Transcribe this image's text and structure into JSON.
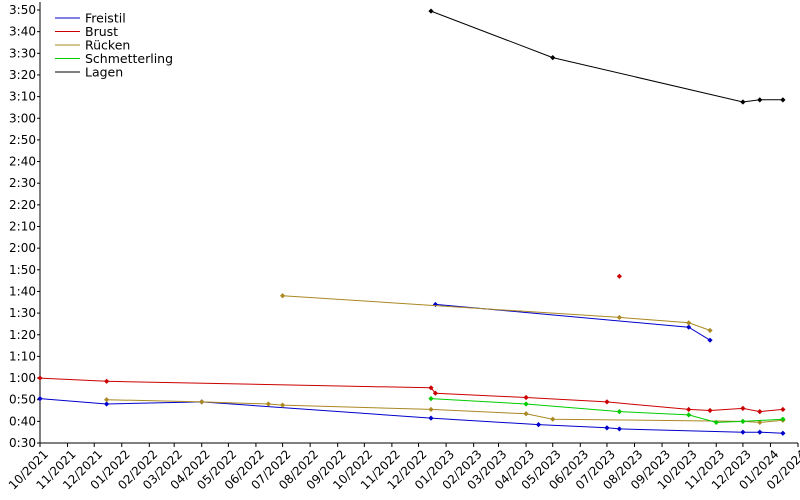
{
  "chart_data": {
    "type": "line",
    "title": "",
    "xlabel": "",
    "ylabel": "",
    "x_tick_labels": [
      "10/2021",
      "11/2021",
      "12/2021",
      "01/2022",
      "02/2022",
      "03/2022",
      "04/2022",
      "05/2022",
      "06/2022",
      "07/2022",
      "08/2022",
      "09/2022",
      "10/2022",
      "11/2022",
      "12/2022",
      "01/2023",
      "02/2023",
      "03/2023",
      "04/2023",
      "05/2023",
      "06/2023",
      "07/2023",
      "08/2023",
      "09/2023",
      "10/2023",
      "11/2023",
      "12/2023",
      "01/2024",
      "02/2024"
    ],
    "y_ticks": [
      "0:30",
      "0:40",
      "0:50",
      "1:00",
      "1:10",
      "1:20",
      "1:30",
      "1:40",
      "1:50",
      "2:00",
      "2:10",
      "2:20",
      "2:30",
      "2:40",
      "2:50",
      "3:00",
      "3:10",
      "3:20",
      "3:30",
      "3:40",
      "3:50"
    ],
    "ylim": [
      "0:30",
      "3:50"
    ],
    "xlim": [
      "2021-10-01",
      "2024-02-01"
    ],
    "grid": false,
    "legend_position": "top-left",
    "series": [
      {
        "name": "Freistil",
        "color": "#0000cc",
        "points": [
          {
            "x": "2021-10-01",
            "y": "0:50.5"
          },
          {
            "x": "2021-12-15",
            "y": "0:48"
          },
          {
            "x": "2022-04-01",
            "y": "0:49"
          },
          {
            "x": "2022-12-15",
            "y": "0:41.5"
          },
          {
            "x": "2023-04-15",
            "y": "0:38.5"
          },
          {
            "x": "2023-07-01",
            "y": "0:37"
          },
          {
            "x": "2023-07-15",
            "y": "0:36.5"
          },
          {
            "x": "2023-12-01",
            "y": "0:35"
          },
          {
            "x": "2023-12-20",
            "y": "0:35"
          },
          {
            "x": "2024-01-15",
            "y": "0:34.5"
          }
        ]
      },
      {
        "name": "Freistil",
        "color": "#0000cc",
        "points": [
          {
            "x": "2022-12-20",
            "y": "1:34"
          },
          {
            "x": "2023-10-01",
            "y": "1:23.5"
          },
          {
            "x": "2023-10-25",
            "y": "1:17.5"
          }
        ]
      },
      {
        "name": "Brust",
        "color": "#cc0000",
        "points": [
          {
            "x": "2021-10-01",
            "y": "1:00"
          },
          {
            "x": "2021-12-15",
            "y": "0:58.5"
          },
          {
            "x": "2022-12-15",
            "y": "0:55.5"
          },
          {
            "x": "2022-12-20",
            "y": "0:53"
          },
          {
            "x": "2023-04-01",
            "y": "0:51"
          },
          {
            "x": "2023-07-01",
            "y": "0:49"
          },
          {
            "x": "2023-10-01",
            "y": "0:45.5"
          },
          {
            "x": "2023-10-25",
            "y": "0:45"
          },
          {
            "x": "2023-12-01",
            "y": "0:46"
          },
          {
            "x": "2023-12-20",
            "y": "0:44.5"
          },
          {
            "x": "2024-01-15",
            "y": "0:45.5"
          }
        ]
      },
      {
        "name": "Brust",
        "color": "#cc0000",
        "points": [
          {
            "x": "2023-07-15",
            "y": "1:47"
          }
        ]
      },
      {
        "name": "Rücken",
        "color": "#aa8822",
        "points": [
          {
            "x": "2021-12-15",
            "y": "0:50"
          },
          {
            "x": "2022-04-01",
            "y": "0:49"
          },
          {
            "x": "2022-06-15",
            "y": "0:48"
          },
          {
            "x": "2022-07-01",
            "y": "0:47.5"
          },
          {
            "x": "2022-12-15",
            "y": "0:45.5"
          },
          {
            "x": "2023-04-01",
            "y": "0:43.5"
          },
          {
            "x": "2023-05-01",
            "y": "0:41"
          },
          {
            "x": "2023-12-01",
            "y": "0:40"
          },
          {
            "x": "2023-12-20",
            "y": "0:39.5"
          },
          {
            "x": "2024-01-15",
            "y": "0:40.5"
          }
        ]
      },
      {
        "name": "Rücken",
        "color": "#aa8822",
        "points": [
          {
            "x": "2022-07-01",
            "y": "1:38"
          },
          {
            "x": "2023-07-15",
            "y": "1:28"
          },
          {
            "x": "2023-10-01",
            "y": "1:25.5"
          },
          {
            "x": "2023-10-25",
            "y": "1:22"
          }
        ]
      },
      {
        "name": "Schmetterling",
        "color": "#00cc00",
        "points": [
          {
            "x": "2022-12-15",
            "y": "0:50.5"
          },
          {
            "x": "2023-04-01",
            "y": "0:48"
          },
          {
            "x": "2023-07-15",
            "y": "0:44.5"
          },
          {
            "x": "2023-10-01",
            "y": "0:43"
          },
          {
            "x": "2023-11-01",
            "y": "0:39.5"
          },
          {
            "x": "2023-12-01",
            "y": "0:40"
          },
          {
            "x": "2024-01-15",
            "y": "0:41"
          }
        ]
      },
      {
        "name": "Lagen",
        "color": "#000000",
        "points": [
          {
            "x": "2022-12-15",
            "y": "3:49.5"
          },
          {
            "x": "2023-05-01",
            "y": "3:28"
          },
          {
            "x": "2023-12-01",
            "y": "3:07.5"
          },
          {
            "x": "2023-12-20",
            "y": "3:08.5"
          },
          {
            "x": "2024-01-15",
            "y": "3:08.5"
          }
        ]
      }
    ],
    "legend": [
      {
        "name": "Freistil",
        "color": "#0000cc"
      },
      {
        "name": "Brust",
        "color": "#cc0000"
      },
      {
        "name": "Rücken",
        "color": "#aa8822"
      },
      {
        "name": "Schmetterling",
        "color": "#00cc00"
      },
      {
        "name": "Lagen",
        "color": "#000000"
      }
    ]
  }
}
